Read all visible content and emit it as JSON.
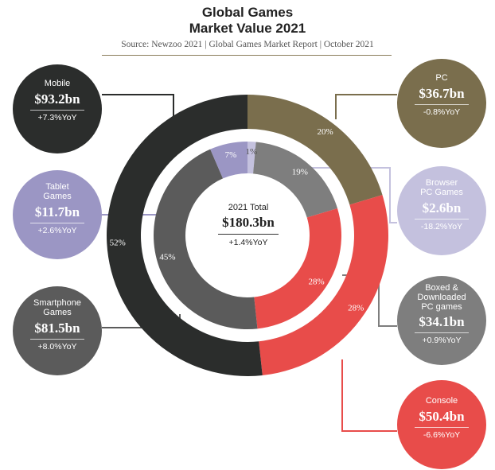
{
  "title_line1": "Global Games",
  "title_line2": "Market Value 2021",
  "source": "Source: Newzoo 2021 | Global Games Market Report | October 2021",
  "center": {
    "label": "2021 Total",
    "value": "$180.3bn",
    "change": "+1.4%YoY"
  },
  "colors": {
    "mobile": "#2b2d2c",
    "pc": "#7a6e4d",
    "console": "#e84c4a",
    "tablet": "#9b96c4",
    "browser": "#c4c1de",
    "boxed": "#7e7e7e",
    "smartphone": "#5b5b5b"
  },
  "bubbles": {
    "mobile": {
      "name": "Mobile",
      "value": "$93.2bn",
      "change": "+7.3%YoY"
    },
    "tablet": {
      "name": "Tablet\nGames",
      "value": "$11.7bn",
      "change": "+2.6%YoY"
    },
    "smartphone": {
      "name": "Smartphone\nGames",
      "value": "$81.5bn",
      "change": "+8.0%YoY"
    },
    "pc": {
      "name": "PC",
      "value": "$36.7bn",
      "change": "-0.8%YoY"
    },
    "browser": {
      "name": "Browser\nPC Games",
      "value": "$2.6bn",
      "change": "-18.2%YoY"
    },
    "boxed": {
      "name": "Boxed &\nDownloaded\nPC games",
      "value": "$34.1bn",
      "change": "+0.9%YoY"
    },
    "console": {
      "name": "Console",
      "value": "$50.4bn",
      "change": "-6.6%YoY"
    }
  },
  "chart_data": {
    "type": "pie",
    "title": "Global Games Market Value 2021",
    "total": 180.3,
    "unit": "$bn",
    "outer_ring": [
      {
        "name": "PC",
        "value": 36.7,
        "percent": 20,
        "label": "20%"
      },
      {
        "name": "Console",
        "value": 50.4,
        "percent": 28,
        "label": "28%"
      },
      {
        "name": "Mobile",
        "value": 93.2,
        "percent": 52,
        "label": "52%"
      }
    ],
    "inner_ring": [
      {
        "name": "Browser PC Games",
        "value": 2.6,
        "percent": 1,
        "label": "1%"
      },
      {
        "name": "Boxed & Downloaded PC games",
        "value": 34.1,
        "percent": 19,
        "label": "19%"
      },
      {
        "name": "Console",
        "value": 50.4,
        "percent": 28,
        "label": "28%"
      },
      {
        "name": "Smartphone Games",
        "value": 81.5,
        "percent": 45,
        "label": "45%"
      },
      {
        "name": "Tablet Games",
        "value": 11.7,
        "percent": 7,
        "label": "7%"
      }
    ]
  }
}
